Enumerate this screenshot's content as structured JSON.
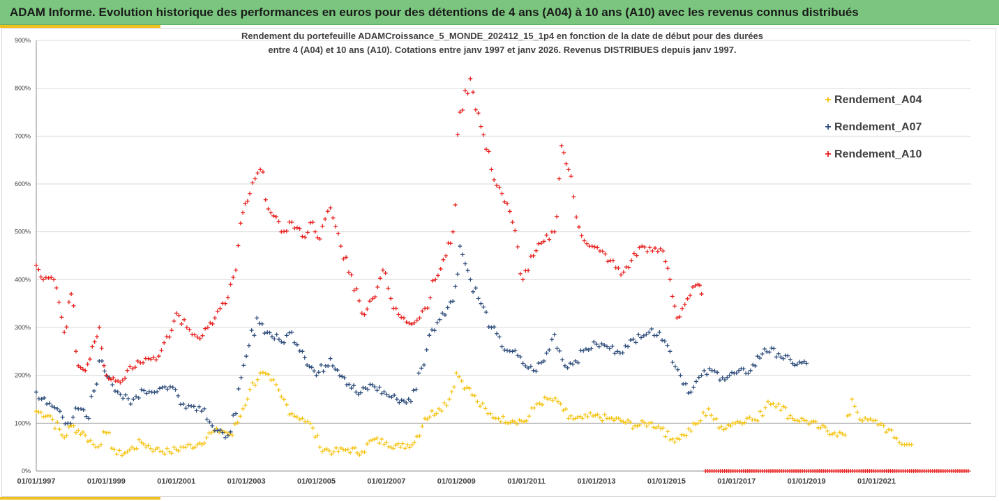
{
  "header": {
    "title": "ADAM Informe. Evolution historique des performances en euros pour des détentions de 4 ans (A04) à 10 ans (A10) avec les revenus connus distribués",
    "bg_color": "#7bc67f",
    "accent_color": "#f0c020"
  },
  "chart_data": {
    "type": "scatter",
    "title_line1": "Rendement du portefeuille ADAMCroissance_5_MONDE_202412_15_1p4  en fonction de la date de début pour des durées",
    "title_line2": "entre 4 (A04) et 10 ans (A10). Cotations entre janv 1997 et janv 2026. Revenus DISTRIBUES depuis janv 1997.",
    "xlabel": "",
    "ylabel": "",
    "xlim": [
      1997.0,
      2023.7
    ],
    "ylim": [
      0,
      900
    ],
    "y_ticks": [
      0,
      100,
      200,
      300,
      400,
      500,
      600,
      700,
      800,
      900
    ],
    "y_tick_labels": [
      "0%",
      "100%",
      "200%",
      "300%",
      "400%",
      "500%",
      "600%",
      "700%",
      "800%",
      "900%"
    ],
    "x_ticks": [
      1997,
      1999,
      2001,
      2003,
      2005,
      2007,
      2009,
      2011,
      2013,
      2015,
      2017,
      2019,
      2021
    ],
    "x_tick_labels": [
      "01/01/1997",
      "01/01/1999",
      "01/01/2001",
      "01/01/2003",
      "01/01/2005",
      "01/01/2007",
      "01/01/2009",
      "01/01/2011",
      "01/01/2013",
      "01/01/2015",
      "01/01/2017",
      "01/01/2019",
      "01/01/2021"
    ],
    "grid": true,
    "legend_position": "right",
    "marker": "+",
    "series": [
      {
        "name": "Rendement_A04",
        "color": "#f5c518",
        "x": [
          1997.0,
          1997.4,
          1997.8,
          1998.0,
          1998.4,
          1998.7,
          1999.0,
          1999.3,
          1999.6,
          2000.0,
          2000.4,
          2000.8,
          2001.2,
          2001.6,
          2002.0,
          2002.3,
          2002.6,
          2002.9,
          2003.1,
          2003.4,
          2003.7,
          2004.0,
          2004.3,
          2004.6,
          2004.9,
          2005.1,
          2005.5,
          2005.9,
          2006.3,
          2006.6,
          2007.0,
          2007.4,
          2007.8,
          2008.1,
          2008.5,
          2008.8,
          2009.0,
          2009.3,
          2009.6,
          2009.9,
          2010.2,
          2010.6,
          2011.0,
          2011.3,
          2011.6,
          2011.9,
          2012.2,
          2012.6,
          2012.9,
          2013.3,
          2013.7,
          2014.1,
          2014.5,
          2014.9,
          2015.1,
          2015.5,
          2015.9,
          2016.2,
          2016.5,
          2016.9,
          2017.3,
          2017.6,
          2017.9,
          2018.2,
          2018.6,
          2019.0,
          2019.4,
          2019.8,
          2020.1,
          2020.3,
          2020.6,
          2020.9,
          2021.2,
          2021.5,
          2021.8,
          2022.0
        ],
        "values": [
          125,
          115,
          70,
          95,
          75,
          50,
          80,
          35,
          40,
          60,
          45,
          40,
          50,
          55,
          80,
          85,
          75,
          130,
          170,
          205,
          190,
          155,
          120,
          110,
          90,
          50,
          40,
          45,
          40,
          65,
          60,
          50,
          60,
          110,
          130,
          150,
          205,
          175,
          145,
          120,
          110,
          105,
          105,
          140,
          150,
          145,
          110,
          110,
          115,
          110,
          105,
          95,
          100,
          90,
          65,
          75,
          100,
          130,
          90,
          100,
          110,
          105,
          145,
          140,
          110,
          105,
          90,
          80,
          75,
          150,
          105,
          105,
          95,
          70,
          55,
          55
        ]
      },
      {
        "name": "Rendement_A07",
        "color": "#2e4d7b",
        "x": [
          1997.0,
          1997.3,
          1997.6,
          1997.9,
          1998.2,
          1998.5,
          1998.8,
          1999.1,
          1999.4,
          1999.7,
          2000.0,
          2000.3,
          2000.6,
          2000.9,
          2001.2,
          2001.5,
          2001.8,
          2002.1,
          2002.4,
          2002.7,
          2003.0,
          2003.3,
          2003.6,
          2004.0,
          2004.3,
          2004.6,
          2005.0,
          2005.4,
          2005.8,
          2006.2,
          2006.6,
          2007.0,
          2007.3,
          2007.7,
          2008.0,
          2008.3,
          2008.6,
          2008.9,
          2009.1,
          2009.4,
          2009.7,
          2010.0,
          2010.3,
          2010.6,
          2010.9,
          2011.2,
          2011.5,
          2011.8,
          2012.1,
          2012.4,
          2012.7,
          2013.0,
          2013.3,
          2013.6,
          2013.9,
          2014.2,
          2014.5,
          2014.8,
          2015.1,
          2015.4,
          2015.7,
          2016.0,
          2016.3,
          2016.6,
          2017.0,
          2017.4,
          2017.8,
          2018.2,
          2018.6,
          2019.0
        ],
        "values": [
          165,
          140,
          130,
          100,
          130,
          110,
          230,
          195,
          160,
          140,
          170,
          165,
          175,
          175,
          140,
          135,
          130,
          85,
          70,
          120,
          240,
          320,
          290,
          270,
          290,
          250,
          200,
          235,
          195,
          160,
          180,
          160,
          150,
          145,
          215,
          295,
          330,
          355,
          470,
          400,
          350,
          300,
          260,
          250,
          225,
          210,
          230,
          285,
          220,
          230,
          255,
          265,
          260,
          250,
          260,
          285,
          290,
          290,
          250,
          200,
          165,
          200,
          210,
          195,
          205,
          210,
          255,
          245,
          225,
          225
        ]
      },
      {
        "name": "Rendement_A10",
        "color": "#e8211f",
        "x": [
          1997.0,
          1997.2,
          1997.5,
          1997.8,
          1998.0,
          1998.2,
          1998.4,
          1998.6,
          1998.8,
          1999.0,
          1999.2,
          1999.4,
          1999.6,
          1999.9,
          2000.2,
          2000.5,
          2000.8,
          2001.0,
          2001.3,
          2001.6,
          2001.9,
          2002.1,
          2002.4,
          2002.7,
          2002.9,
          2003.1,
          2003.4,
          2003.7,
          2004.0,
          2004.3,
          2004.6,
          2004.9,
          2005.1,
          2005.4,
          2005.7,
          2006.0,
          2006.3,
          2006.6,
          2006.9,
          2007.2,
          2007.5,
          2007.8,
          2008.1,
          2008.4,
          2008.7,
          2008.9,
          2009.1,
          2009.4,
          2009.7,
          2010.0,
          2010.3,
          2010.6,
          2010.9,
          2011.2,
          2011.5,
          2011.8,
          2012.0,
          2012.2,
          2012.5,
          2012.8,
          2013.1,
          2013.4,
          2013.7,
          2014.0,
          2014.3,
          2014.6,
          2014.9,
          2015.1,
          2015.3,
          2015.6,
          2015.9,
          2016.0
        ],
        "values": [
          430,
          400,
          400,
          290,
          370,
          220,
          210,
          260,
          300,
          200,
          195,
          185,
          210,
          230,
          235,
          240,
          280,
          330,
          300,
          280,
          300,
          320,
          350,
          420,
          540,
          580,
          630,
          540,
          500,
          520,
          490,
          520,
          485,
          550,
          470,
          410,
          330,
          360,
          420,
          340,
          320,
          310,
          340,
          400,
          450,
          500,
          750,
          820,
          720,
          630,
          580,
          520,
          400,
          450,
          480,
          500,
          680,
          630,
          510,
          470,
          460,
          440,
          410,
          440,
          470,
          460,
          460,
          400,
          320,
          360,
          390,
          370
        ]
      }
    ]
  }
}
